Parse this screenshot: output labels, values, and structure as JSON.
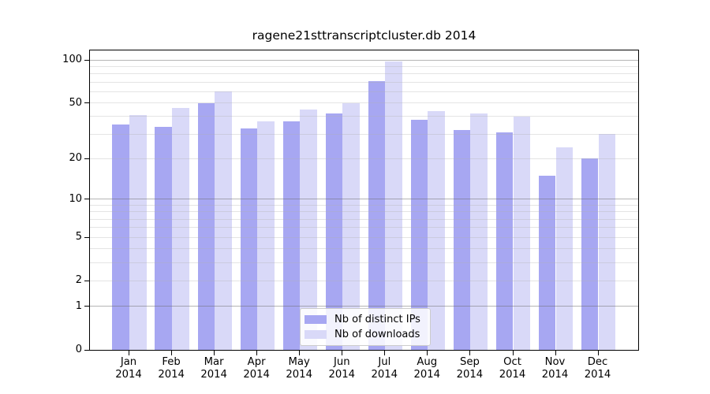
{
  "title": "ragene21sttranscriptcluster.db 2014",
  "colors": {
    "background": "#ffffff",
    "bar_distinct_ips": "#a7a7f2",
    "bar_downloads": "#d9d9f8",
    "grid_major": "#c0c0c0",
    "grid_minor": "#e8e8e8",
    "axis": "#000000"
  },
  "legend": {
    "items": [
      {
        "label": "Nb of distinct IPs",
        "color": "#a7a7f2"
      },
      {
        "label": "Nb of downloads",
        "color": "#d9d9f8"
      }
    ]
  },
  "chart_data": {
    "type": "bar",
    "title": "ragene21sttranscriptcluster.db 2014",
    "categories": [
      "Jan",
      "Feb",
      "Mar",
      "Apr",
      "May",
      "Jun",
      "Jul",
      "Aug",
      "Sep",
      "Oct",
      "Nov",
      "Dec"
    ],
    "category_year": "2014",
    "series": [
      {
        "name": "Nb of distinct IPs",
        "color": "#a7a7f2",
        "values": [
          35,
          34,
          50,
          33,
          37,
          42,
          71,
          38,
          32,
          31,
          15,
          20
        ]
      },
      {
        "name": "Nb of downloads",
        "color": "#d9d9f8",
        "values": [
          41,
          46,
          60,
          37,
          45,
          50,
          97,
          44,
          42,
          40,
          24,
          30
        ]
      }
    ],
    "xlabel": "",
    "ylabel": "",
    "yscale": "log1p",
    "ylim": [
      0,
      117
    ],
    "yticks": [
      0,
      1,
      2,
      5,
      10,
      20,
      50,
      100
    ],
    "grid": {
      "on": true,
      "major": [
        1,
        10,
        100
      ],
      "minor": [
        2,
        3,
        4,
        5,
        6,
        7,
        8,
        9,
        20,
        30,
        40,
        50,
        60,
        70,
        80,
        90
      ]
    },
    "legend_position": "inside-bottom-center"
  }
}
